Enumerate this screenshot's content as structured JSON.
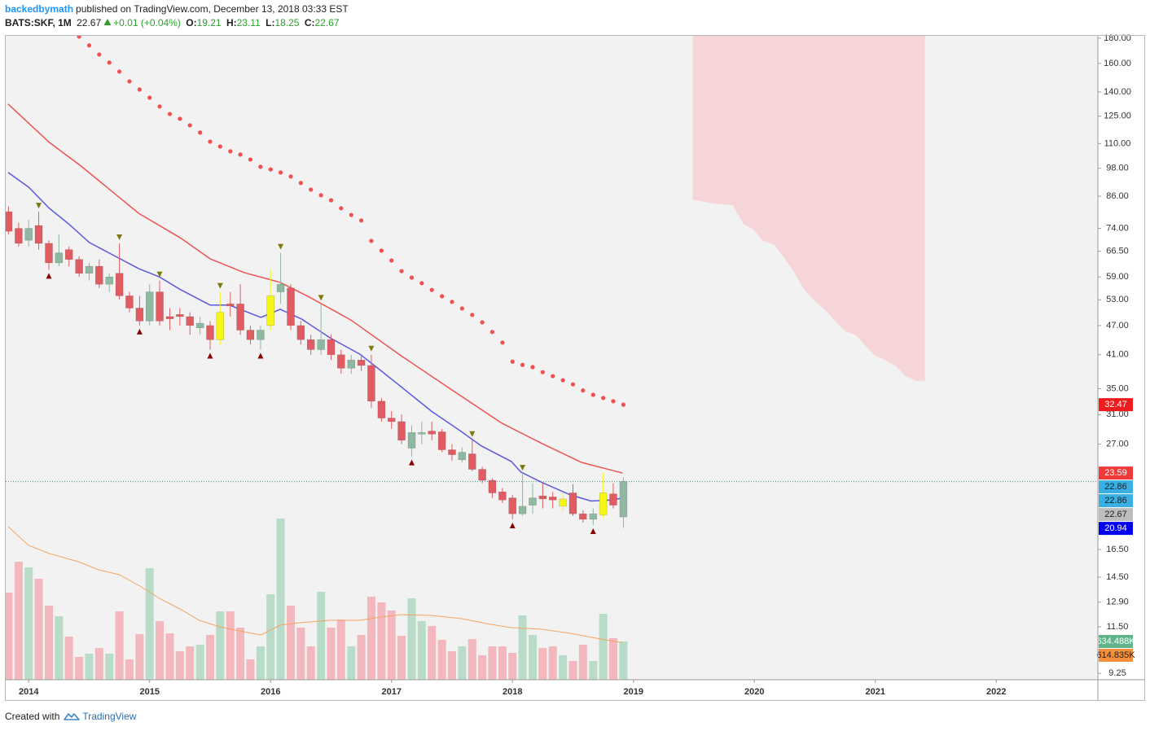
{
  "header": {
    "author": "backedbymath",
    "published": "published on TradingView.com, December 13, 2018 03:33 EST",
    "symbol": "BATS:SKF, 1M",
    "change": "+0.01 (+0.04%)",
    "ohlc_labels": [
      "O:",
      "H:",
      "L:",
      "C:"
    ]
  },
  "footer": {
    "created": "Created with",
    "brand": "TradingView"
  },
  "chart_data": {
    "type": "candlestick",
    "log_scale": true,
    "grid": false,
    "x": [
      2013.833,
      2013.917,
      2014,
      2014.083,
      2014.167,
      2014.25,
      2014.333,
      2014.417,
      2014.5,
      2014.583,
      2014.667,
      2014.75,
      2014.833,
      2014.917,
      2015,
      2015.083,
      2015.167,
      2015.25,
      2015.333,
      2015.417,
      2015.5,
      2015.583,
      2015.667,
      2015.75,
      2015.833,
      2015.917,
      2016,
      2016.083,
      2016.167,
      2016.25,
      2016.333,
      2016.417,
      2016.5,
      2016.583,
      2016.667,
      2016.75,
      2016.833,
      2016.917,
      2017,
      2017.083,
      2017.167,
      2017.25,
      2017.333,
      2017.417,
      2017.5,
      2017.583,
      2017.667,
      2017.75,
      2017.833,
      2017.917,
      2018,
      2018.083,
      2018.167,
      2018.25,
      2018.333,
      2018.417,
      2018.5,
      2018.583,
      2018.667,
      2018.75,
      2018.833,
      2018.917
    ],
    "open": [
      80,
      74,
      70,
      75,
      69,
      63,
      67,
      64,
      60,
      62,
      57,
      60,
      54,
      51,
      48,
      55,
      49,
      49.5,
      49,
      46.5,
      47,
      44,
      52,
      52,
      46,
      44,
      47,
      55,
      56,
      47,
      44,
      42,
      44,
      41,
      38.5,
      40,
      39,
      33,
      30.5,
      30,
      26.5,
      28.3,
      28.7,
      28.6,
      26.3,
      25.1,
      25.8,
      24,
      22.8,
      21.6,
      21,
      19.5,
      20.3,
      21.2,
      21.1,
      20.2,
      21.5,
      19.5,
      19,
      19.4,
      21.4,
      19.21
    ],
    "high": [
      82,
      76,
      77,
      80,
      70,
      72,
      68,
      65,
      63,
      64,
      60,
      69,
      55,
      54,
      57,
      58,
      51,
      51,
      50,
      49,
      48,
      55,
      55,
      57,
      47,
      47,
      61,
      66,
      57,
      48,
      45,
      52,
      45,
      42,
      41,
      41,
      41,
      33.5,
      31.5,
      31,
      29.5,
      30,
      30,
      29,
      27,
      26.6,
      27.5,
      24.3,
      23,
      22,
      21.3,
      23.5,
      22.5,
      22.5,
      21.6,
      21.5,
      22.4,
      19.8,
      20,
      23.6,
      22.5,
      23.11
    ],
    "low": [
      72,
      68,
      68,
      67,
      61,
      62,
      62,
      59,
      58,
      56,
      55,
      53,
      50,
      47,
      47,
      47,
      46,
      47,
      45,
      45,
      42,
      43,
      49,
      45,
      43,
      42,
      46,
      52,
      46,
      43,
      41,
      41,
      40,
      37.5,
      37.5,
      38,
      32,
      30,
      29,
      27,
      25.5,
      27,
      27.5,
      26,
      25,
      24.8,
      23.8,
      22.5,
      21,
      20.5,
      19,
      19.3,
      19.5,
      20,
      20,
      19.7,
      19.3,
      18.7,
      18.5,
      19.1,
      20,
      18.25
    ],
    "close": [
      73,
      69,
      74,
      69,
      63,
      66,
      64,
      60,
      62,
      57,
      59,
      54,
      51,
      48,
      55,
      48,
      48.5,
      49,
      47,
      47.5,
      44,
      50,
      51.5,
      46,
      44,
      46,
      54,
      57,
      47,
      44,
      42,
      44,
      41,
      38.5,
      40,
      39,
      33,
      30.5,
      30,
      27.5,
      28.5,
      28.5,
      28.3,
      26.3,
      25.7,
      26,
      24,
      22.8,
      21.5,
      20.8,
      19.5,
      20.2,
      21,
      20.9,
      20.8,
      20.9,
      19.5,
      19,
      19.5,
      21.5,
      20.3,
      22.67
    ],
    "up_color": "#8fb8a0",
    "down_color": "#e05c62",
    "highlight_color": "#f5f51a",
    "highlight_x": [
      2015.583,
      2016,
      2018.417,
      2018.75
    ],
    "last_line_color": "#3d8f80",
    "xlim": [
      2013.81,
      2022.84
    ],
    "xticks": [
      2014,
      2015,
      2016,
      2017,
      2018,
      2019,
      2020,
      2021,
      2022
    ],
    "ylim": [
      8.98,
      182
    ],
    "yticks": [
      {
        "value": 180,
        "label": "180.00"
      },
      {
        "value": 160,
        "label": "160.00"
      },
      {
        "value": 140,
        "label": "140.00"
      },
      {
        "value": 125,
        "label": "125.00"
      },
      {
        "value": 110,
        "label": "110.00"
      },
      {
        "value": 98,
        "label": "98.00"
      },
      {
        "value": 86,
        "label": "86.00"
      },
      {
        "value": 74,
        "label": "74.00"
      },
      {
        "value": 66.5,
        "label": "66.50"
      },
      {
        "value": 59,
        "label": "59.00"
      },
      {
        "value": 53,
        "label": "53.00"
      },
      {
        "value": 47,
        "label": "47.00"
      },
      {
        "value": 41,
        "label": "41.00"
      },
      {
        "value": 35,
        "label": "35.00"
      },
      {
        "value": 31,
        "label": "31.00"
      },
      {
        "value": 27,
        "label": "27.00"
      },
      {
        "value": 16.5,
        "label": "16.50"
      },
      {
        "value": 14.5,
        "label": "14.50"
      },
      {
        "value": 12.9,
        "label": "12.90"
      },
      {
        "value": 11.5,
        "label": "11.50"
      },
      {
        "value": 9.25,
        "label": "9.25"
      }
    ],
    "overlays": [
      {
        "type": "area",
        "color": "#f5d5d7",
        "x": [
          2019.49,
          2019.66,
          2019.82,
          2019.91,
          2019.99,
          2020.07,
          2020.16,
          2020.24,
          2020.33,
          2020.41,
          2020.5,
          2020.58,
          2020.67,
          2020.75,
          2020.84,
          2020.92,
          2021,
          2021.08,
          2021.17,
          2021.25,
          2021.34,
          2021.41
        ],
        "lower": [
          84.7,
          83.1,
          82.5,
          75.6,
          73.6,
          69.8,
          68.7,
          64.9,
          60.2,
          55.7,
          52.7,
          50.7,
          47.9,
          45.8,
          44.9,
          42.7,
          40.8,
          40,
          38.9,
          37.1,
          36.3,
          36.3
        ]
      },
      {
        "type": "line",
        "color": "#5a5ae0",
        "x": [
          2013.83,
          2014,
          2014.17,
          2014.33,
          2014.5,
          2014.91,
          2015.08,
          2015.25,
          2015.5,
          2015.66,
          2015.92,
          2016.08,
          2016.26,
          2016.49,
          2016.74,
          2016.91,
          2017.08,
          2017.33,
          2017.58,
          2017.74,
          2017.99,
          2018.07,
          2018.24,
          2018.48,
          2018.65,
          2018.82,
          2018.91
        ],
        "values": [
          96.1,
          89.7,
          81.3,
          75.6,
          69.3,
          61.3,
          59,
          55.7,
          51.7,
          51.7,
          48.8,
          50.7,
          48.4,
          44.4,
          41.1,
          38.1,
          35.3,
          31.5,
          28.6,
          26.8,
          24.9,
          23.7,
          22.6,
          21.3,
          20.7,
          20.8,
          21
        ]
      },
      {
        "type": "line",
        "color": "#ef5350",
        "x": [
          2013.83,
          2014.17,
          2014.44,
          2014.91,
          2015.25,
          2015.5,
          2015.78,
          2016.08,
          2016.32,
          2016.66,
          2017.08,
          2017.49,
          2017.91,
          2018.24,
          2018.57,
          2018.82,
          2018.91
        ],
        "values": [
          132.3,
          110.6,
          98.7,
          79.4,
          70.9,
          64.2,
          60.2,
          57.5,
          53.7,
          48.3,
          40.8,
          34.9,
          29.8,
          27.1,
          24.8,
          23.9,
          23.59
        ]
      },
      {
        "type": "dots",
        "color": "#f05050",
        "values": [
          null,
          null,
          null,
          null,
          null,
          null,
          null,
          181.4,
          174,
          166.8,
          160.6,
          154,
          147.1,
          141.6,
          136.3,
          130.8,
          126.3,
          123.5,
          119.8,
          115.8,
          111,
          108.5,
          106.1,
          104.5,
          102.1,
          98.7,
          97.5,
          96.1,
          94.3,
          91.5,
          88.7,
          86.4,
          84.4,
          81.3,
          78.8,
          76.8,
          69.8,
          66.7,
          63.7,
          60.6,
          58.8,
          57.3,
          55.5,
          53.9,
          52.5,
          50.9,
          49.4,
          47.7,
          45.6,
          43.4,
          39.7,
          39.1,
          38.7,
          37.8,
          37.1,
          36.4,
          35.7,
          34.7,
          34,
          33.5,
          33,
          32.47
        ]
      }
    ],
    "pivot_high_x": [
      2014.083,
      2014.75,
      2015.083,
      2015.583,
      2016.083,
      2016.417,
      2016.833,
      2017.667,
      2018.083
    ],
    "pivot_high_color": "#7a7a10",
    "pivot_low_x": [
      2014.167,
      2014.917,
      2015.5,
      2015.917,
      2017.167,
      2018,
      2018.667
    ],
    "pivot_low_color": "#8b0000",
    "price_badges": [
      {
        "value": 32.47,
        "color": "#ee1c1c",
        "text_color": "#ffffff"
      },
      {
        "value": 23.59,
        "color": "#f03a3a",
        "text_color": "#ffffff"
      },
      {
        "value": 22.86,
        "color": "#3aafe2",
        "text_color": "#102030"
      },
      {
        "value": 22.86,
        "color": "#3aafe2",
        "text_color": "#102030"
      },
      {
        "value": 22.67,
        "color": "#bdbdbd",
        "text_color": "#202020"
      },
      {
        "value": 20.94,
        "color": "#0000ee",
        "text_color": "#ffffff"
      }
    ],
    "volume": {
      "values": [
        1444500,
        1957500,
        1863000,
        1674000,
        1228500,
        1053000,
        715500,
        378000,
        432000,
        526500,
        432000,
        1134000,
        337500,
        756000,
        1849500,
        972000,
        769500,
        472500,
        553500,
        580500,
        742500,
        1134000,
        1134000,
        864000,
        337500,
        553500,
        1417500,
        2673000,
        1228500,
        864000,
        553500,
        1458000,
        864000,
        999000,
        553500,
        742500,
        1377000,
        1282500,
        1147500,
        729000,
        1350000,
        972000,
        891000,
        661500,
        472500,
        553500,
        675000,
        405000,
        553500,
        553500,
        445500,
        1066500,
        742500,
        526500,
        553500,
        405000,
        310500,
        580500,
        310500,
        1093500,
        688500,
        634488
      ],
      "ylim": [
        0,
        3780000
      ],
      "up_color": "#b9dcc8",
      "down_color": "#f2b8bd",
      "ma": {
        "color": "#f4a460",
        "x": [
          2013.83,
          2014,
          2014.17,
          2014.41,
          2014.58,
          2014.75,
          2014.92,
          2015.08,
          2015.25,
          2015.41,
          2015.58,
          2015.74,
          2015.92,
          2016.08,
          2016.24,
          2016.49,
          2016.74,
          2016.91,
          2017.08,
          2017.33,
          2017.58,
          2017.82,
          2017.99,
          2018.24,
          2018.48,
          2018.73,
          2018.91
        ],
        "values": [
          2538000,
          2227500,
          2092500,
          1957500,
          1822500,
          1741500,
          1552500,
          1350000,
          1174500,
          985500,
          877500,
          810000,
          742500,
          904500,
          945000,
          985500,
          985500,
          1039500,
          1080000,
          1066500,
          1012500,
          918000,
          864000,
          837000,
          769500,
          675000,
          614835
        ]
      },
      "badges": [
        {
          "value": 634488,
          "label": "634.488K",
          "color": "#5fb48a",
          "text_color": "#ffffff"
        },
        {
          "value": 614835,
          "label": "614.835K",
          "color": "#f5913c",
          "text_color": "#202020"
        }
      ]
    }
  }
}
